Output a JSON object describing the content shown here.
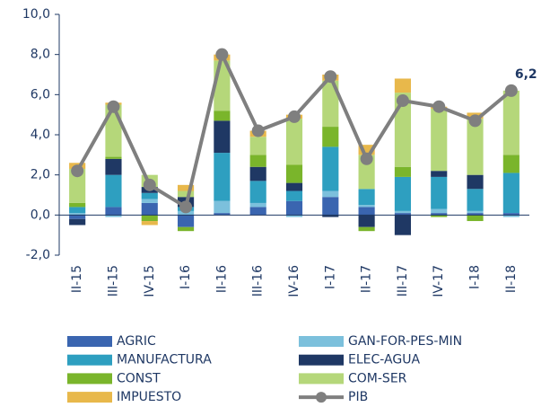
{
  "chart_data": {
    "type": "bar",
    "stacked": true,
    "categories": [
      "II-15",
      "III-15",
      "IV-15",
      "I-16",
      "II-16",
      "III-16",
      "IV-16",
      "I-17",
      "II-17",
      "III-17",
      "IV-17",
      "I-18",
      "II-18"
    ],
    "series": [
      {
        "name": "AGRIC",
        "color": "#3a65b0",
        "values": [
          -0.2,
          0.4,
          0.6,
          -0.6,
          0.1,
          0.4,
          0.7,
          0.9,
          0.4,
          0.1,
          0.1,
          0.1,
          0.1
        ]
      },
      {
        "name": "GAN-FOR-PES-MIN",
        "color": "#7cc0dc",
        "values": [
          0.1,
          -0.1,
          0.2,
          0.2,
          0.6,
          0.2,
          -0.1,
          0.3,
          0.1,
          0.1,
          0.2,
          0.1,
          -0.1
        ]
      },
      {
        "name": "MANUFACTURA",
        "color": "#2e9fc0",
        "values": [
          0.3,
          1.6,
          0.3,
          0.2,
          2.4,
          1.1,
          0.5,
          2.2,
          0.8,
          1.7,
          1.6,
          1.1,
          2.0
        ]
      },
      {
        "name": "ELEC-AGUA",
        "color": "#1f3864",
        "values": [
          -0.3,
          0.8,
          0.3,
          0.5,
          1.6,
          0.7,
          0.4,
          -0.1,
          -0.6,
          -1.0,
          0.3,
          0.7,
          0.0
        ]
      },
      {
        "name": "CONST",
        "color": "#7ab52b",
        "values": [
          0.2,
          0.1,
          -0.3,
          -0.2,
          0.5,
          0.6,
          0.9,
          1.0,
          -0.2,
          0.5,
          -0.1,
          -0.3,
          0.9
        ]
      },
      {
        "name": "COM-SER",
        "color": "#b5d77a",
        "values": [
          1.7,
          2.6,
          0.6,
          0.3,
          2.5,
          0.9,
          2.3,
          2.3,
          1.7,
          3.7,
          3.1,
          2.8,
          3.2
        ]
      },
      {
        "name": "IMPUESTO",
        "color": "#e8b84b",
        "values": [
          0.3,
          0.1,
          -0.2,
          0.3,
          0.3,
          0.3,
          0.2,
          0.3,
          0.5,
          0.7,
          0.1,
          0.3,
          0.0
        ]
      },
      {
        "name": "PIB",
        "type": "line",
        "color": "#7f7f7f",
        "values": [
          2.2,
          5.4,
          1.5,
          0.4,
          8.0,
          4.2,
          4.9,
          6.9,
          2.8,
          5.7,
          5.4,
          4.7,
          6.2
        ],
        "value_labels": [
          null,
          null,
          null,
          null,
          null,
          null,
          null,
          null,
          null,
          null,
          null,
          null,
          "6,2"
        ]
      }
    ],
    "ylim": [
      -2,
      10
    ],
    "yticks": [
      {
        "value": -2,
        "label": "-2,0"
      },
      {
        "value": 0,
        "label": "0,0"
      },
      {
        "value": 2,
        "label": "2,0"
      },
      {
        "value": 4,
        "label": "4,0"
      },
      {
        "value": 6,
        "label": "6,0"
      },
      {
        "value": 8,
        "label": "8,0"
      },
      {
        "value": 10,
        "label": "10,0"
      }
    ]
  }
}
